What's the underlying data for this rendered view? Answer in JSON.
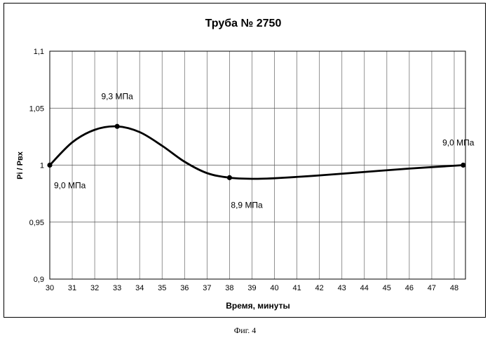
{
  "chart_data": {
    "type": "line",
    "title": "Труба № 2750",
    "xlabel": "Время, минуты",
    "ylabel": "Pi / Pвх",
    "xlim": [
      30,
      48.5
    ],
    "ylim": [
      0.9,
      1.1
    ],
    "x_ticks": [
      30,
      31,
      32,
      33,
      34,
      35,
      36,
      37,
      38,
      39,
      40,
      41,
      42,
      43,
      44,
      45,
      46,
      47,
      48
    ],
    "x_tick_labels": [
      "30",
      "31",
      "32",
      "33",
      "34",
      "35",
      "36",
      "37",
      "38",
      "39",
      "40",
      "41",
      "42",
      "43",
      "44",
      "45",
      "46",
      "47",
      "48"
    ],
    "y_ticks": [
      0.9,
      0.95,
      1.0,
      1.05,
      1.1
    ],
    "y_tick_labels": [
      "0,9",
      "0,95",
      "1",
      "1,05",
      "1,1"
    ],
    "grid": true,
    "series": [
      {
        "name": "Pi / Pвх",
        "points": [
          {
            "x": 30.0,
            "y": 1.0
          },
          {
            "x": 33.0,
            "y": 1.034
          },
          {
            "x": 38.0,
            "y": 0.989
          },
          {
            "x": 48.4,
            "y": 1.0
          }
        ],
        "curve": [
          {
            "x": 30.0,
            "y": 1.0
          },
          {
            "x": 31.0,
            "y": 1.02
          },
          {
            "x": 32.0,
            "y": 1.031
          },
          {
            "x": 33.0,
            "y": 1.034
          },
          {
            "x": 34.0,
            "y": 1.029
          },
          {
            "x": 35.0,
            "y": 1.017
          },
          {
            "x": 36.0,
            "y": 1.003
          },
          {
            "x": 37.0,
            "y": 0.993
          },
          {
            "x": 38.0,
            "y": 0.989
          },
          {
            "x": 39.0,
            "y": 0.988
          },
          {
            "x": 40.0,
            "y": 0.9885
          },
          {
            "x": 42.0,
            "y": 0.991
          },
          {
            "x": 44.0,
            "y": 0.994
          },
          {
            "x": 46.0,
            "y": 0.997
          },
          {
            "x": 48.4,
            "y": 1.0
          }
        ]
      }
    ],
    "annotations": [
      {
        "text": "9,0 МПа",
        "x": 30.0,
        "y": 1.0,
        "place": "below-right"
      },
      {
        "text": "9,3 МПа",
        "x": 33.0,
        "y": 1.034,
        "place": "above"
      },
      {
        "text": "8,9 МПа",
        "x": 38.0,
        "y": 0.989,
        "place": "below-right"
      },
      {
        "text": "9,0 МПа",
        "x": 48.4,
        "y": 1.0,
        "place": "above-left"
      }
    ]
  },
  "caption": "Фиг. 4"
}
